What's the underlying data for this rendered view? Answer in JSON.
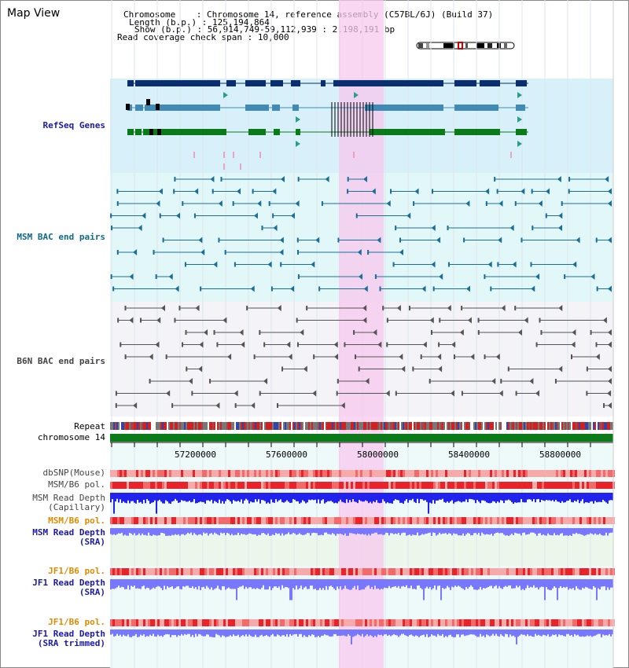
{
  "title": "Map View",
  "info": {
    "chromosome_label": "Chromosome",
    "chromosome_value": "Chromosome 14, reference assembly (C57BL/6J) (Build 37)",
    "length_label": "Length (b.p.)",
    "length_value": "125,194,864",
    "show_label": "Show (b.p.)",
    "show_value": "56,914,749-59,112,939 : 2,198,191 bp",
    "coverage_label": "Read coverage check span",
    "coverage_value": "10,000"
  },
  "labels": {
    "refseq": "RefSeq Genes",
    "msm_bac": "MSM BAC end pairs",
    "b6n_bac": "B6N BAC end pairs",
    "repeat": "Repeat",
    "chromosome": "chromosome 14",
    "dbsnp": "dbSNP(Mouse)",
    "msm_pol1": "MSM/B6 pol.",
    "msm_depth_cap_1": "MSM Read Depth",
    "msm_depth_cap_2": "(Capillary)",
    "msm_pol2": "MSM/B6 pol.",
    "msm_depth_sra_1": "MSM Read Depth",
    "msm_depth_sra_2": "(SRA)",
    "jf1_pol1": "JF1/B6 pol.",
    "jf1_depth_sra_1": "JF1 Read Depth",
    "jf1_depth_sra_2": "(SRA)",
    "jf1_pol2": "JF1/B6 pol.",
    "jf1_depth_trim_1": "JF1 Read Depth",
    "jf1_depth_trim_2": "(SRA trimmed)"
  },
  "axis": {
    "ticks": [
      "57200000",
      "57600000",
      "58000000",
      "58400000",
      "58800000"
    ]
  },
  "colors": {
    "refseq_label": "#1a1aaa",
    "msm_label": "#0b6b8a",
    "b6n_label": "#444444",
    "orange_label": "#e08a00",
    "blue_label": "#1a1aaa",
    "highlight": "#f7c8ee",
    "refseq_bg": "#d8f0fa",
    "msm_bg": "#e2f7f7",
    "b6n_bg": "#f4f4f8",
    "gene_dark": "#0b2f6e",
    "gene_mid": "#3f8bb6",
    "gene_green": "#0b7a18",
    "msm_pair": "#1a6f9a",
    "b6n_pair": "#555555",
    "chrom_green": "#0b7a18",
    "depth_blue": "#2222ee",
    "depth_light": "#7777ff",
    "sra_bg": "#eaf7ea"
  }
}
